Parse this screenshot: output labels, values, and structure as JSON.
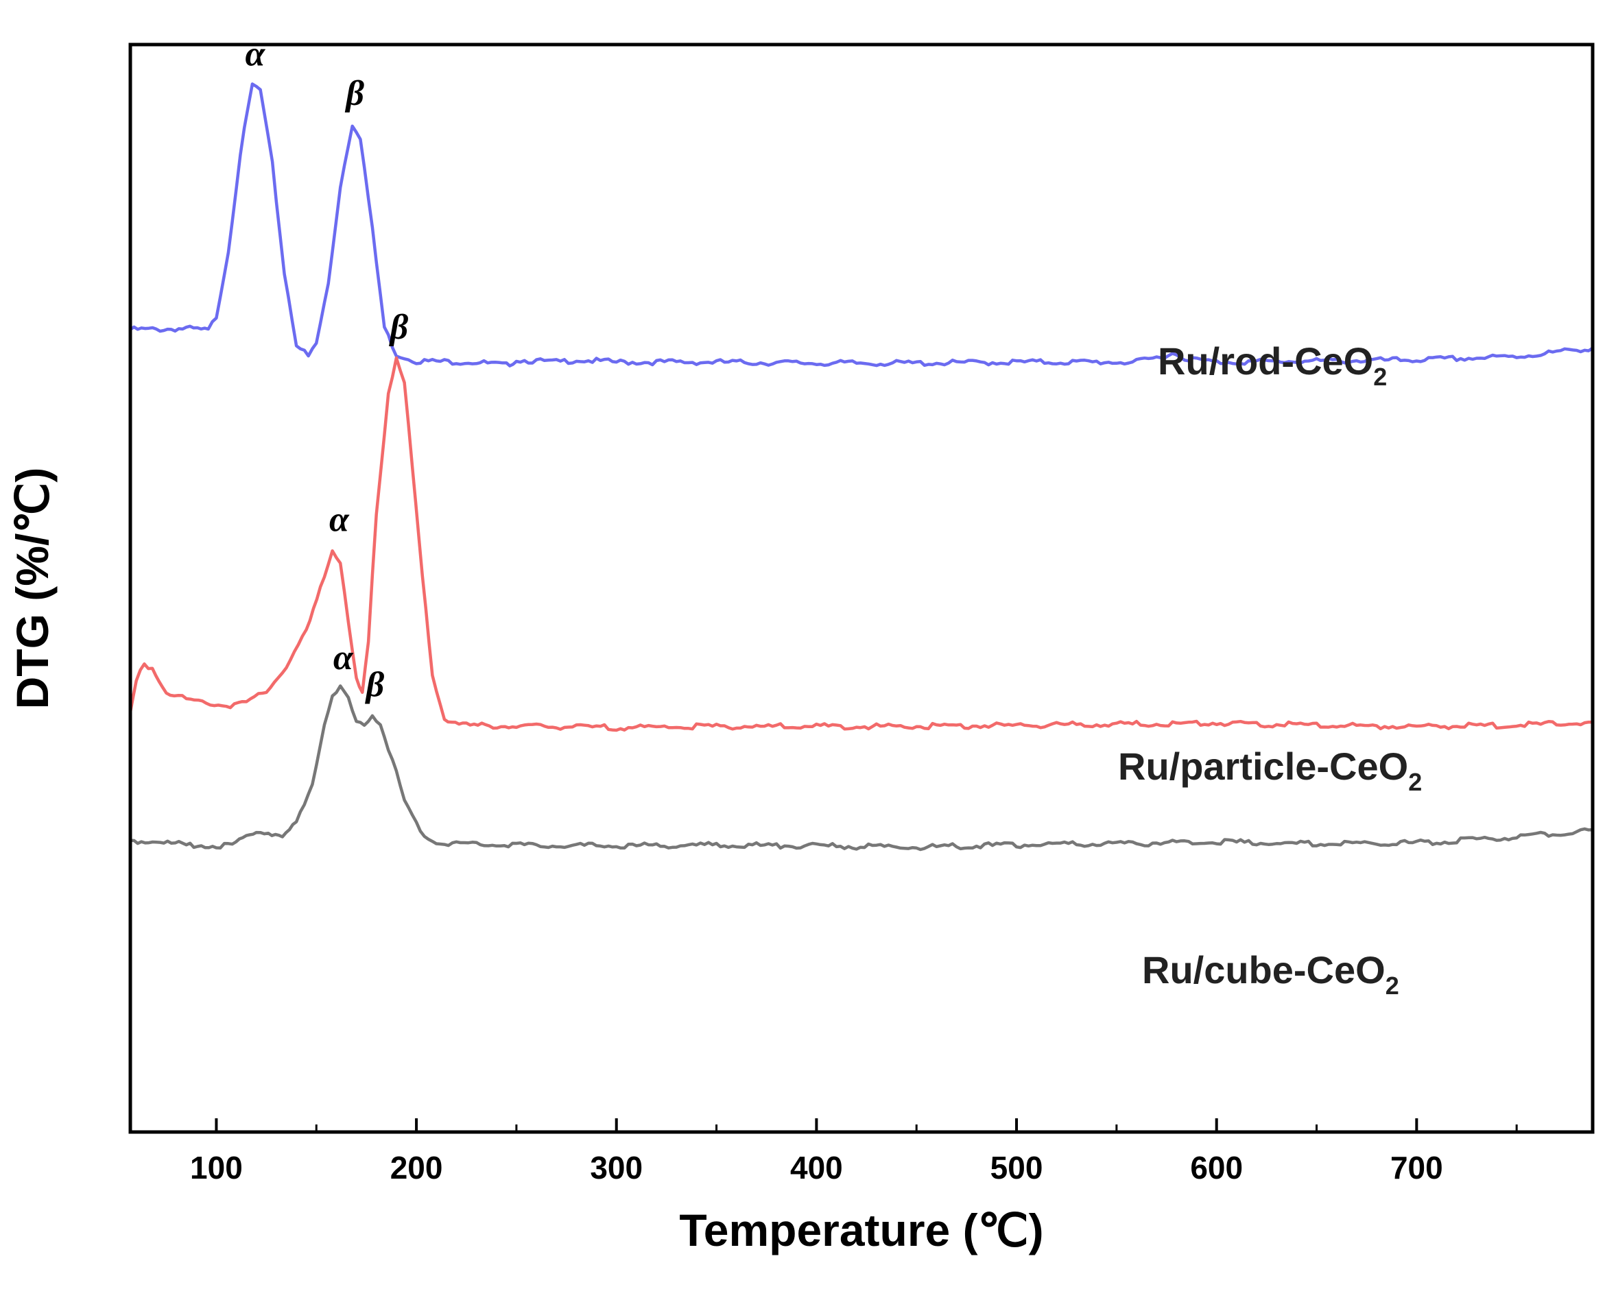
{
  "chart_data": {
    "type": "line",
    "xlabel": "Temperature (℃)",
    "ylabel": "DTG (%/℃)",
    "xlim": [
      57,
      788
    ],
    "ylim": [
      0,
      100
    ],
    "x_ticks": [
      100,
      200,
      300,
      400,
      500,
      600,
      700
    ],
    "y_ticks_shown": false,
    "grid": false,
    "legend": "none (series labelled inline)",
    "series": [
      {
        "name": "Ru/rod-CeO2",
        "label_main": "Ru/rod-CeO",
        "label_sub": "2",
        "color": "#6b6bf0",
        "points": [
          [
            57,
            73.8
          ],
          [
            70,
            73.8
          ],
          [
            85,
            73.9
          ],
          [
            96,
            73.7
          ],
          [
            100,
            75
          ],
          [
            106,
            81
          ],
          [
            112,
            90
          ],
          [
            118,
            96.3
          ],
          [
            122,
            95.8
          ],
          [
            128,
            89
          ],
          [
            134,
            79
          ],
          [
            140,
            72.5
          ],
          [
            146,
            71.3
          ],
          [
            150,
            72.5
          ],
          [
            156,
            78
          ],
          [
            162,
            87
          ],
          [
            168,
            92.7
          ],
          [
            172,
            91.5
          ],
          [
            178,
            83
          ],
          [
            184,
            74
          ],
          [
            190,
            71.5
          ],
          [
            200,
            70.9
          ],
          [
            230,
            70.8
          ],
          [
            245,
            70.5
          ],
          [
            250,
            71
          ],
          [
            270,
            70.8
          ],
          [
            280,
            71
          ],
          [
            300,
            70.8
          ],
          [
            350,
            70.8
          ],
          [
            400,
            70.7
          ],
          [
            450,
            70.7
          ],
          [
            500,
            70.8
          ],
          [
            560,
            70.8
          ],
          [
            570,
            71.2
          ],
          [
            578,
            71.6
          ],
          [
            586,
            71.1
          ],
          [
            600,
            70.8
          ],
          [
            650,
            70.9
          ],
          [
            700,
            71
          ],
          [
            750,
            71.3
          ],
          [
            788,
            72.1
          ]
        ],
        "peaks": [
          {
            "label": "α",
            "x": 118,
            "y": 96.3
          },
          {
            "label": "β",
            "x": 168,
            "y": 92.7
          }
        ]
      },
      {
        "name": "Ru/particle-CeO2",
        "label_main": "Ru/particle-CeO",
        "label_sub": "2",
        "color": "#f26a6a",
        "points": [
          [
            57,
            38.5
          ],
          [
            60,
            41.5
          ],
          [
            64,
            43
          ],
          [
            68,
            42.7
          ],
          [
            75,
            40.5
          ],
          [
            85,
            39.8
          ],
          [
            95,
            39.5
          ],
          [
            105,
            39.2
          ],
          [
            115,
            39.5
          ],
          [
            125,
            40.5
          ],
          [
            135,
            42.8
          ],
          [
            145,
            46
          ],
          [
            152,
            50
          ],
          [
            158,
            53.5
          ],
          [
            162,
            52.5
          ],
          [
            166,
            47
          ],
          [
            170,
            41.5
          ],
          [
            173,
            40.2
          ],
          [
            176,
            45
          ],
          [
            180,
            57
          ],
          [
            186,
            68
          ],
          [
            190,
            71.2
          ],
          [
            194,
            69
          ],
          [
            198,
            61
          ],
          [
            203,
            51
          ],
          [
            208,
            42
          ],
          [
            214,
            38
          ],
          [
            225,
            37.4
          ],
          [
            250,
            37.3
          ],
          [
            300,
            37.2
          ],
          [
            350,
            37.3
          ],
          [
            400,
            37.3
          ],
          [
            450,
            37.3
          ],
          [
            500,
            37.4
          ],
          [
            550,
            37.5
          ],
          [
            600,
            37.6
          ],
          [
            650,
            37.4
          ],
          [
            700,
            37.3
          ],
          [
            750,
            37.4
          ],
          [
            788,
            37.7
          ]
        ],
        "peaks": [
          {
            "label": "α",
            "x": 160,
            "y": 53.5
          },
          {
            "label": "β",
            "x": 190,
            "y": 71.2
          }
        ]
      },
      {
        "name": "Ru/cube-CeO2",
        "label_main": "Ru/cube-CeO",
        "label_sub": "2",
        "color": "#777777",
        "points": [
          [
            57,
            26.8
          ],
          [
            70,
            26.7
          ],
          [
            85,
            26.4
          ],
          [
            100,
            26.3
          ],
          [
            108,
            26.3
          ],
          [
            115,
            27.2
          ],
          [
            120,
            27.8
          ],
          [
            126,
            27.5
          ],
          [
            133,
            27
          ],
          [
            140,
            28.5
          ],
          [
            148,
            32
          ],
          [
            154,
            37.5
          ],
          [
            158,
            40
          ],
          [
            162,
            40.8
          ],
          [
            166,
            39.8
          ],
          [
            170,
            37.6
          ],
          [
            174,
            37.5
          ],
          [
            178,
            38.3
          ],
          [
            182,
            37.6
          ],
          [
            188,
            34.2
          ],
          [
            194,
            30.5
          ],
          [
            202,
            27.5
          ],
          [
            210,
            26.6
          ],
          [
            250,
            26.4
          ],
          [
            300,
            26.3
          ],
          [
            350,
            26.4
          ],
          [
            400,
            26.3
          ],
          [
            450,
            26.2
          ],
          [
            500,
            26.4
          ],
          [
            550,
            26.5
          ],
          [
            600,
            26.7
          ],
          [
            650,
            26.5
          ],
          [
            700,
            26.6
          ],
          [
            750,
            27.1
          ],
          [
            788,
            27.8
          ]
        ],
        "peaks": [
          {
            "label": "α",
            "x": 162,
            "y": 40.8
          },
          {
            "label": "β",
            "x": 178,
            "y": 38.3
          }
        ]
      }
    ]
  }
}
